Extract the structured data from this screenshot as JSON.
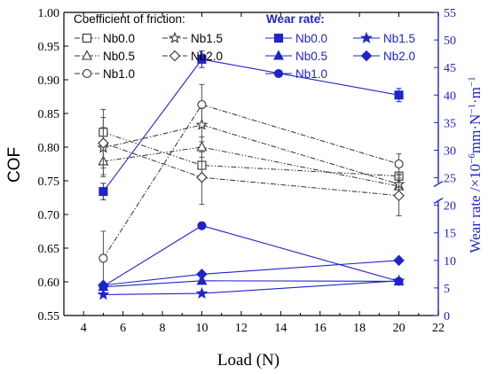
{
  "chart_data": {
    "type": "line",
    "x": [
      5,
      10,
      20
    ],
    "xlabel": "Load (N)",
    "xlim": [
      3,
      22
    ],
    "xticks": [
      4,
      6,
      8,
      10,
      12,
      14,
      16,
      18,
      20,
      22
    ],
    "ylabel_left": "COF",
    "ylim_left": [
      0.55,
      1.0
    ],
    "yticks_left": [
      "0.55",
      "0.60",
      "0.65",
      "0.70",
      "0.75",
      "0.80",
      "0.85",
      "0.90",
      "0.95",
      "1.00"
    ],
    "ylabel_right_main": "Wear rate /×10",
    "ylabel_right_sup": "−6",
    "ylabel_right_end": "mm·N",
    "ylabel_right_sup2": "−1",
    "ylabel_right_mid": "·m",
    "ylabel_right_sup3": "−1",
    "ylim_right": [
      0,
      55
    ],
    "yticks_right": [
      "0",
      "5",
      "10",
      "15",
      "20",
      "25",
      "30",
      "35",
      "40",
      "45",
      "50",
      "55"
    ],
    "right_axis_break_between": [
      20,
      25
    ],
    "legend_left_title": "Coefficient of friction:",
    "legend_right_title": "Wear rate:",
    "colors": {
      "cof": "#333333",
      "wear": "#1f24c8"
    },
    "cof_series": [
      {
        "name": "Nb0.0",
        "marker": "square-open",
        "style": "dash-dot-dot",
        "values": [
          0.822,
          0.773,
          0.757
        ],
        "errors": [
          0.022,
          0.02,
          0.015
        ]
      },
      {
        "name": "Nb0.5",
        "marker": "triangle-open",
        "style": "dash-dot-dot",
        "values": [
          0.779,
          0.8,
          0.742
        ],
        "errors": [
          0.02,
          0.015,
          0.012
        ]
      },
      {
        "name": "Nb1.0",
        "marker": "circle-open",
        "style": "dash-dot",
        "values": [
          0.635,
          0.863,
          0.775
        ],
        "errors": [
          0.04,
          0.03,
          0.015
        ]
      },
      {
        "name": "Nb1.5",
        "marker": "star-open",
        "style": "dash-dot",
        "values": [
          0.799,
          0.833,
          0.745
        ],
        "errors": [
          0.03,
          0.025,
          0.015
        ]
      },
      {
        "name": "Nb2.0",
        "marker": "diamond-open",
        "style": "dash-dot",
        "values": [
          0.806,
          0.755,
          0.728
        ],
        "errors": [
          0.05,
          0.04,
          0.03
        ]
      }
    ],
    "wear_series": [
      {
        "name": "Nb0.0",
        "marker": "square",
        "values": [
          22.5,
          46.5,
          40.0
        ],
        "errors": [
          1.5,
          1.5,
          1.2
        ]
      },
      {
        "name": "Nb0.5",
        "marker": "triangle",
        "values": [
          5.2,
          6.3,
          6.2
        ],
        "errors": [
          0.3,
          0.3,
          0.3
        ]
      },
      {
        "name": "Nb1.0",
        "marker": "circle",
        "values": [
          5.3,
          16.3,
          6.2
        ],
        "errors": [
          0.3,
          0.5,
          0.3
        ]
      },
      {
        "name": "Nb1.5",
        "marker": "star",
        "values": [
          3.8,
          4.0,
          6.3
        ],
        "errors": [
          0.2,
          0.2,
          0.3
        ]
      },
      {
        "name": "Nb2.0",
        "marker": "diamond",
        "values": [
          5.5,
          7.5,
          10.0
        ],
        "errors": [
          0.3,
          0.3,
          0.3
        ]
      }
    ]
  }
}
